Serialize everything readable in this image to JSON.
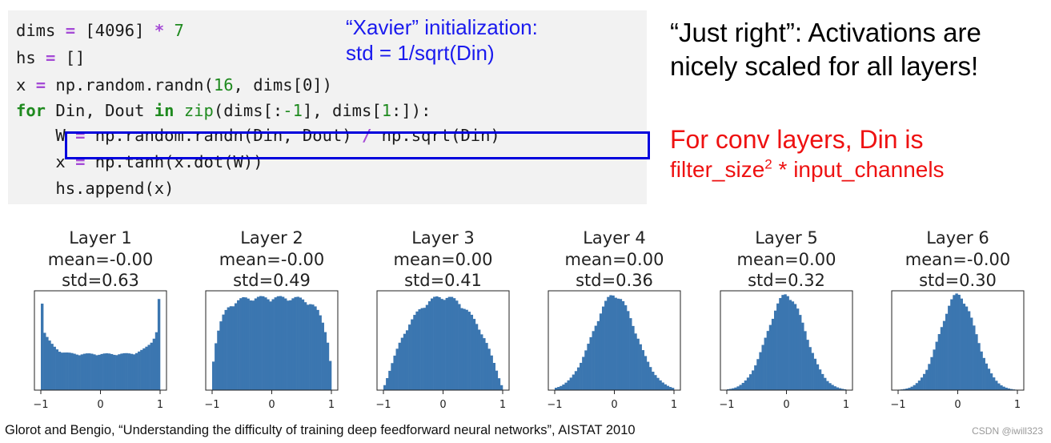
{
  "code": {
    "dims_kw": "dims",
    "dims_rest": " [4096] ",
    "dims_num": "7",
    "hs_kw": "hs",
    "hs_rest": " []",
    "x_line": "np.random.randn(",
    "x_num": "16",
    "x_tail": ", dims[0])",
    "for_kw": "for",
    "for_mid": " Din, Dout ",
    "in_kw": "in",
    "zip_kw": "zip",
    "for_args_a": "(dims[:",
    "for_args_n": "-1",
    "for_args_b": "], dims[",
    "for_args_n2": "1",
    "for_args_c": ":]):",
    "w_line_a": "W ",
    "w_line_b": " np.random.randn(Din, Dout) ",
    "w_line_c": " np.sqrt(Din)",
    "tanh_line": "x ",
    "tanh_rest": " np.tanh(x.dot(W))",
    "append_line": "hs.append(x)"
  },
  "annotations": {
    "xavier_line1": "“Xavier” initialization:",
    "xavier_line2": "std = 1/sqrt(Din)",
    "just_right_line1": "“Just right”: Activations are",
    "just_right_line2": "nicely scaled for all layers!",
    "conv_line1": "For conv layers, Din is",
    "conv_line2a": "filter_size",
    "conv_line2sup": "2",
    "conv_line2b": " * input_channels"
  },
  "citation": "Glorot and Bengio, “Understanding the difficulty of training deep feedforward neural networks”, AISTAT 2010",
  "watermark": "CSDN @iwill323",
  "colors": {
    "bar": "#3b76b0",
    "xavier": "#1a1aee",
    "conv": "#ee1111",
    "box": "#0000dd"
  },
  "chart_data": [
    {
      "type": "bar",
      "title": "Layer 1",
      "subtitle1": "mean=-0.00",
      "subtitle2": "std=0.63",
      "x_ticks": [
        "−1",
        "0",
        "1"
      ],
      "xlim": [
        -1,
        1
      ],
      "shape": "u",
      "std": 0.63
    },
    {
      "type": "bar",
      "title": "Layer 2",
      "subtitle1": "mean=-0.00",
      "subtitle2": "std=0.49",
      "x_ticks": [
        "−1",
        "0",
        "1"
      ],
      "xlim": [
        -1,
        1
      ],
      "shape": "flat",
      "std": 0.49
    },
    {
      "type": "bar",
      "title": "Layer 3",
      "subtitle1": "mean=0.00",
      "subtitle2": "std=0.41",
      "x_ticks": [
        "−1",
        "0",
        "1"
      ],
      "xlim": [
        -1,
        1
      ],
      "shape": "dome",
      "std": 0.41
    },
    {
      "type": "bar",
      "title": "Layer 4",
      "subtitle1": "mean=0.00",
      "subtitle2": "std=0.36",
      "x_ticks": [
        "−1",
        "0",
        "1"
      ],
      "xlim": [
        -1,
        1
      ],
      "shape": "bell",
      "std": 0.36
    },
    {
      "type": "bar",
      "title": "Layer 5",
      "subtitle1": "mean=0.00",
      "subtitle2": "std=0.32",
      "x_ticks": [
        "−1",
        "0",
        "1"
      ],
      "xlim": [
        -1,
        1
      ],
      "shape": "bell",
      "std": 0.32
    },
    {
      "type": "bar",
      "title": "Layer 6",
      "subtitle1": "mean=-0.00",
      "subtitle2": "std=0.30",
      "x_ticks": [
        "−1",
        "0",
        "1"
      ],
      "xlim": [
        -1,
        1
      ],
      "shape": "bell",
      "std": 0.3
    }
  ]
}
